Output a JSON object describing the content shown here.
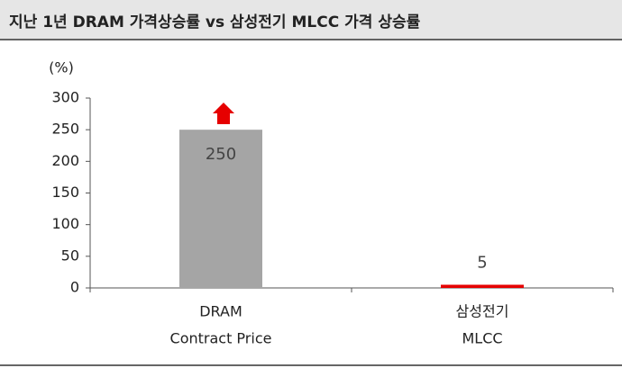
{
  "chart_data": {
    "type": "bar",
    "title": "지난 1년 DRAM 가격상승률 vs 삼성전기 MLCC 가격 상승률",
    "y_label": "(%)",
    "categories": [
      [
        "DRAM",
        "Contract Price"
      ],
      [
        "삼성전기",
        "MLCC"
      ]
    ],
    "values": [
      250,
      5
    ],
    "colors": [
      "#a5a5a5",
      "#e60000"
    ],
    "ylim": [
      0,
      300
    ],
    "yticks": [
      0,
      50,
      100,
      150,
      200,
      250,
      300
    ],
    "grid": false
  }
}
